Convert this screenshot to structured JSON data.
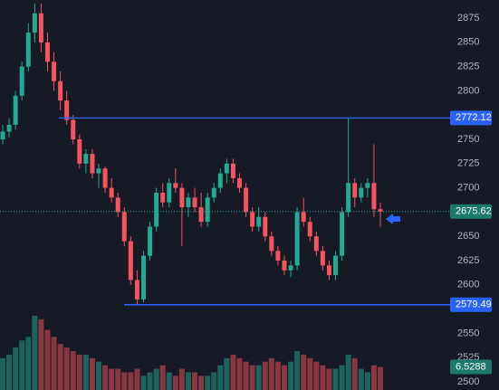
{
  "chart_data": {
    "type": "candlestick",
    "open": [
      2750,
      2758,
      2765,
      2795,
      2825,
      2860,
      2880,
      2850,
      2830,
      2810,
      2790,
      2770,
      2750,
      2725,
      2735,
      2715,
      2720,
      2700,
      2690,
      2675,
      2645,
      2605,
      2585,
      2630,
      2660,
      2695,
      2685,
      2705,
      2700,
      2680,
      2690,
      2680,
      2665,
      2690,
      2700,
      2715,
      2725,
      2710,
      2700,
      2675,
      2660,
      2670,
      2650,
      2635,
      2625,
      2615,
      2620,
      2675,
      2665,
      2650,
      2635,
      2620,
      2610,
      2630,
      2675,
      2705,
      2690,
      2700,
      2705,
      2678
    ],
    "high": [
      2765,
      2772,
      2800,
      2830,
      2870,
      2890,
      2890,
      2860,
      2840,
      2820,
      2800,
      2775,
      2755,
      2740,
      2740,
      2725,
      2722,
      2710,
      2695,
      2680,
      2650,
      2615,
      2635,
      2665,
      2700,
      2705,
      2710,
      2720,
      2705,
      2695,
      2700,
      2695,
      2695,
      2705,
      2720,
      2730,
      2730,
      2715,
      2705,
      2680,
      2680,
      2675,
      2655,
      2640,
      2630,
      2625,
      2680,
      2690,
      2670,
      2655,
      2640,
      2625,
      2635,
      2680,
      2772,
      2710,
      2705,
      2710,
      2745,
      2685
    ],
    "low": [
      2745,
      2752,
      2760,
      2790,
      2820,
      2850,
      2840,
      2820,
      2800,
      2780,
      2765,
      2745,
      2720,
      2715,
      2710,
      2700,
      2695,
      2685,
      2670,
      2640,
      2600,
      2580,
      2582,
      2625,
      2655,
      2680,
      2680,
      2695,
      2640,
      2670,
      2675,
      2660,
      2660,
      2685,
      2695,
      2705,
      2705,
      2695,
      2670,
      2655,
      2655,
      2645,
      2630,
      2620,
      2610,
      2608,
      2615,
      2660,
      2645,
      2630,
      2615,
      2605,
      2605,
      2625,
      2670,
      2680,
      2685,
      2690,
      2670,
      2660
    ],
    "close": [
      2758,
      2765,
      2795,
      2825,
      2860,
      2880,
      2850,
      2830,
      2810,
      2790,
      2770,
      2750,
      2725,
      2735,
      2715,
      2720,
      2700,
      2690,
      2675,
      2645,
      2605,
      2585,
      2630,
      2660,
      2695,
      2685,
      2705,
      2700,
      2680,
      2690,
      2680,
      2665,
      2690,
      2700,
      2715,
      2725,
      2710,
      2700,
      2675,
      2660,
      2670,
      2650,
      2635,
      2625,
      2615,
      2620,
      2675,
      2665,
      2650,
      2635,
      2620,
      2610,
      2630,
      2675,
      2705,
      2690,
      2700,
      2705,
      2678,
      2675.62
    ],
    "volume": [
      9,
      10,
      12,
      14,
      15,
      21,
      20,
      17,
      15,
      13,
      12,
      11,
      10,
      10,
      9,
      8,
      7,
      6,
      6,
      5,
      5,
      6,
      4,
      5,
      6,
      7,
      5,
      4,
      6,
      5,
      5,
      4,
      4,
      5,
      7,
      9,
      10,
      9,
      8,
      7,
      7,
      8,
      9,
      8,
      7,
      8,
      11,
      10,
      9,
      8,
      7,
      6,
      6,
      7,
      10,
      9,
      6,
      5,
      7,
      6.5288
    ],
    "up_color": "#22ab94",
    "down_color": "#f7525f",
    "level_color": "#2962ff",
    "levels": [
      2772.12,
      2579.49
    ],
    "ylim": [
      2491.6,
      2893.7
    ],
    "vlim": [
      0,
      22
    ],
    "yticks": [
      2500,
      2525,
      2550,
      2575,
      2600,
      2625,
      2650,
      2675,
      2700,
      2725,
      2750,
      2775,
      2800,
      2825,
      2850,
      2875
    ]
  }
}
